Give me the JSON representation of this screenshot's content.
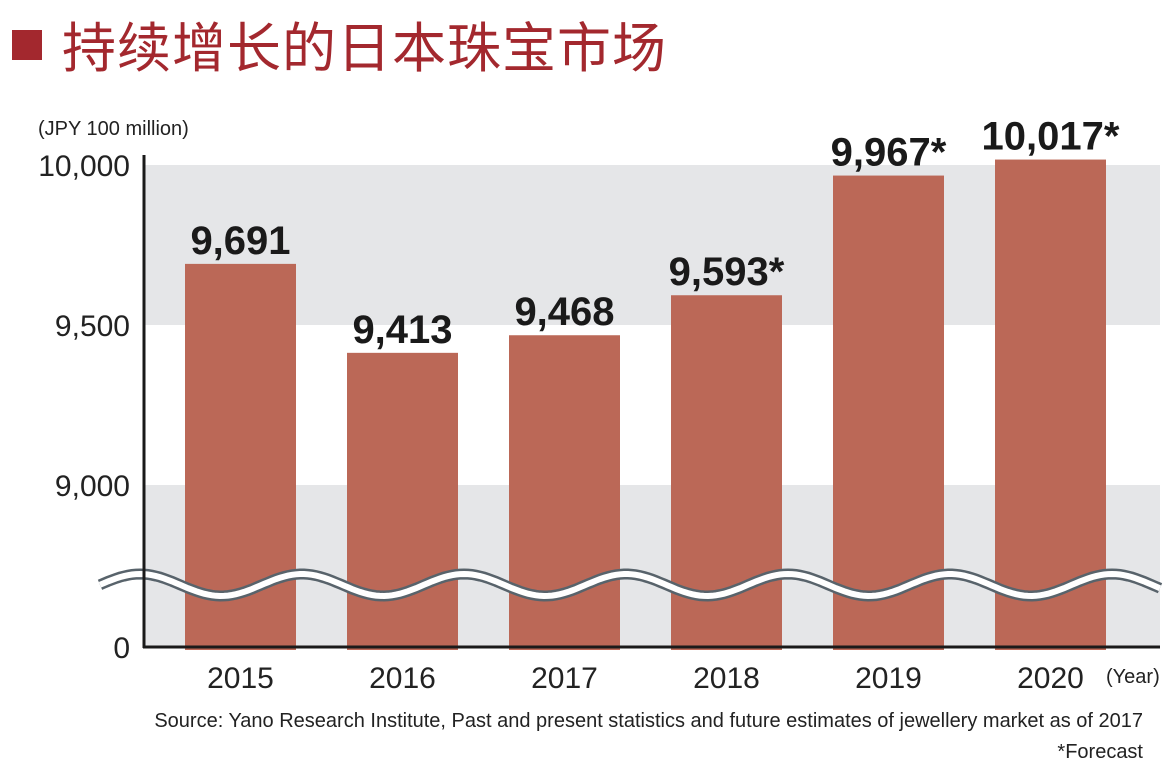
{
  "title": "持续增长的日本珠宝市场",
  "colors": {
    "title": "#a3282e",
    "bar": "#bb6857",
    "band": "#e5e6e8",
    "axis": "#1a1a1a",
    "break": "#58636b"
  },
  "chart_data": {
    "type": "bar",
    "title": "持续增长的日本珠宝市场",
    "ylabel": "(JPY 100 million)",
    "xlabel": "(Year)",
    "categories": [
      "2015",
      "2016",
      "2017",
      "2018",
      "2019",
      "2020"
    ],
    "values": [
      9691,
      9413,
      9468,
      9593,
      9967,
      10017
    ],
    "data_labels": [
      "9,691",
      "9,413",
      "9,468",
      "9,593*",
      "9,967*",
      "10,017*"
    ],
    "yticks": [
      {
        "value": 0,
        "label": "0"
      },
      {
        "value": 9000,
        "label": "9,000"
      },
      {
        "value": 9500,
        "label": "9,500"
      },
      {
        "value": 10000,
        "label": "10,000"
      }
    ],
    "ylim": [
      0,
      10000
    ],
    "axis_break": "between 0 and 9,000",
    "grid": "alternating horizontal bands",
    "source": "Source: Yano Research Institute, Past and present statistics and future estimates of jewellery market as of 2017",
    "note": "*Forecast"
  }
}
